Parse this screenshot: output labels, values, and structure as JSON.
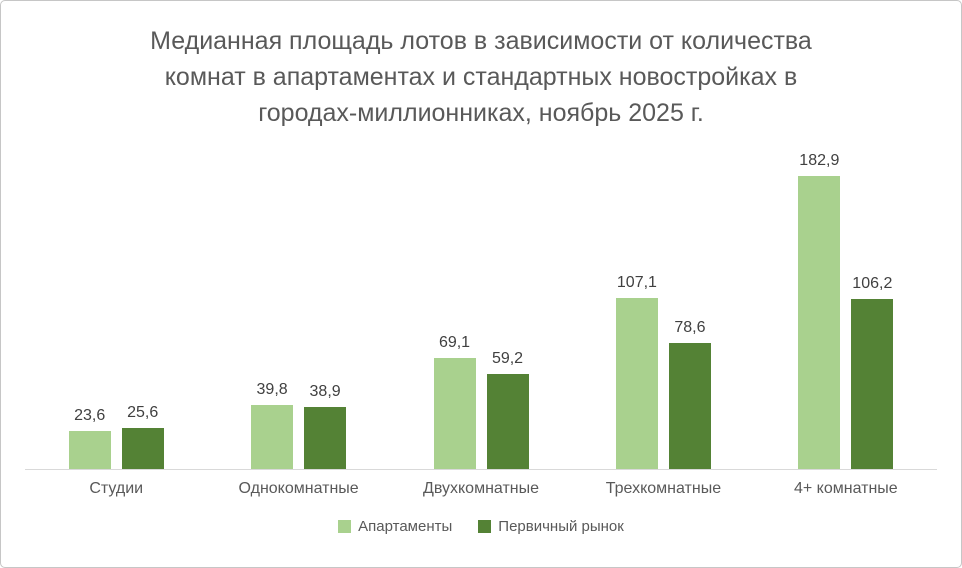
{
  "chart_data": {
    "type": "bar",
    "title": "Медианная площадь лотов в зависимости от количества комнат в апартаментах и стандартных новостройках в городах-миллионниках, ноябрь 2025 г.",
    "categories": [
      "Студии",
      "Однокомнатные",
      "Двухкомнатные",
      "Трехкомнатные",
      "4+ комнатные"
    ],
    "series": [
      {
        "name": "Апартаменты",
        "color": "#a9d18e",
        "values": [
          23.6,
          39.8,
          69.1,
          107.1,
          182.9
        ],
        "labels": [
          "23,6",
          "39,8",
          "69,1",
          "107,1",
          "182,9"
        ]
      },
      {
        "name": "Первичный рынок",
        "color": "#548235",
        "values": [
          25.6,
          38.9,
          59.2,
          78.6,
          106.2
        ],
        "labels": [
          "25,6",
          "38,9",
          "59,2",
          "78,6",
          "106,2"
        ]
      }
    ],
    "xlabel": "",
    "ylabel": "",
    "ylim": [
      0,
      195
    ],
    "grid": false,
    "legend_position": "bottom"
  },
  "style": {
    "title_color": "#595959",
    "value_label_color": "#404040",
    "category_label_color": "#595959",
    "axis_line_color": "#d9d9d9",
    "background": "#ffffff"
  }
}
